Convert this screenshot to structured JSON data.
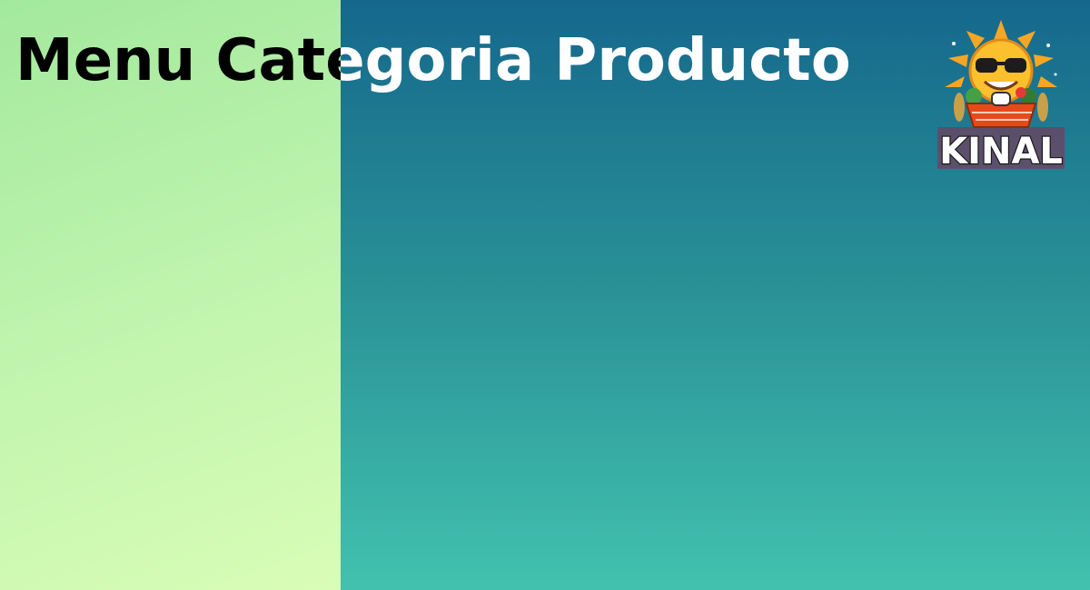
{
  "page": {
    "title": "Menu Categoria Producto"
  },
  "logo": {
    "text": "KINAL",
    "icon": "sun-mascot-basket-icon"
  },
  "colors": {
    "left_panel_start": "#a3e99d",
    "left_panel_end": "#d9fdb7",
    "right_panel_start": "#15688c",
    "right_panel_end": "#42c2af"
  }
}
